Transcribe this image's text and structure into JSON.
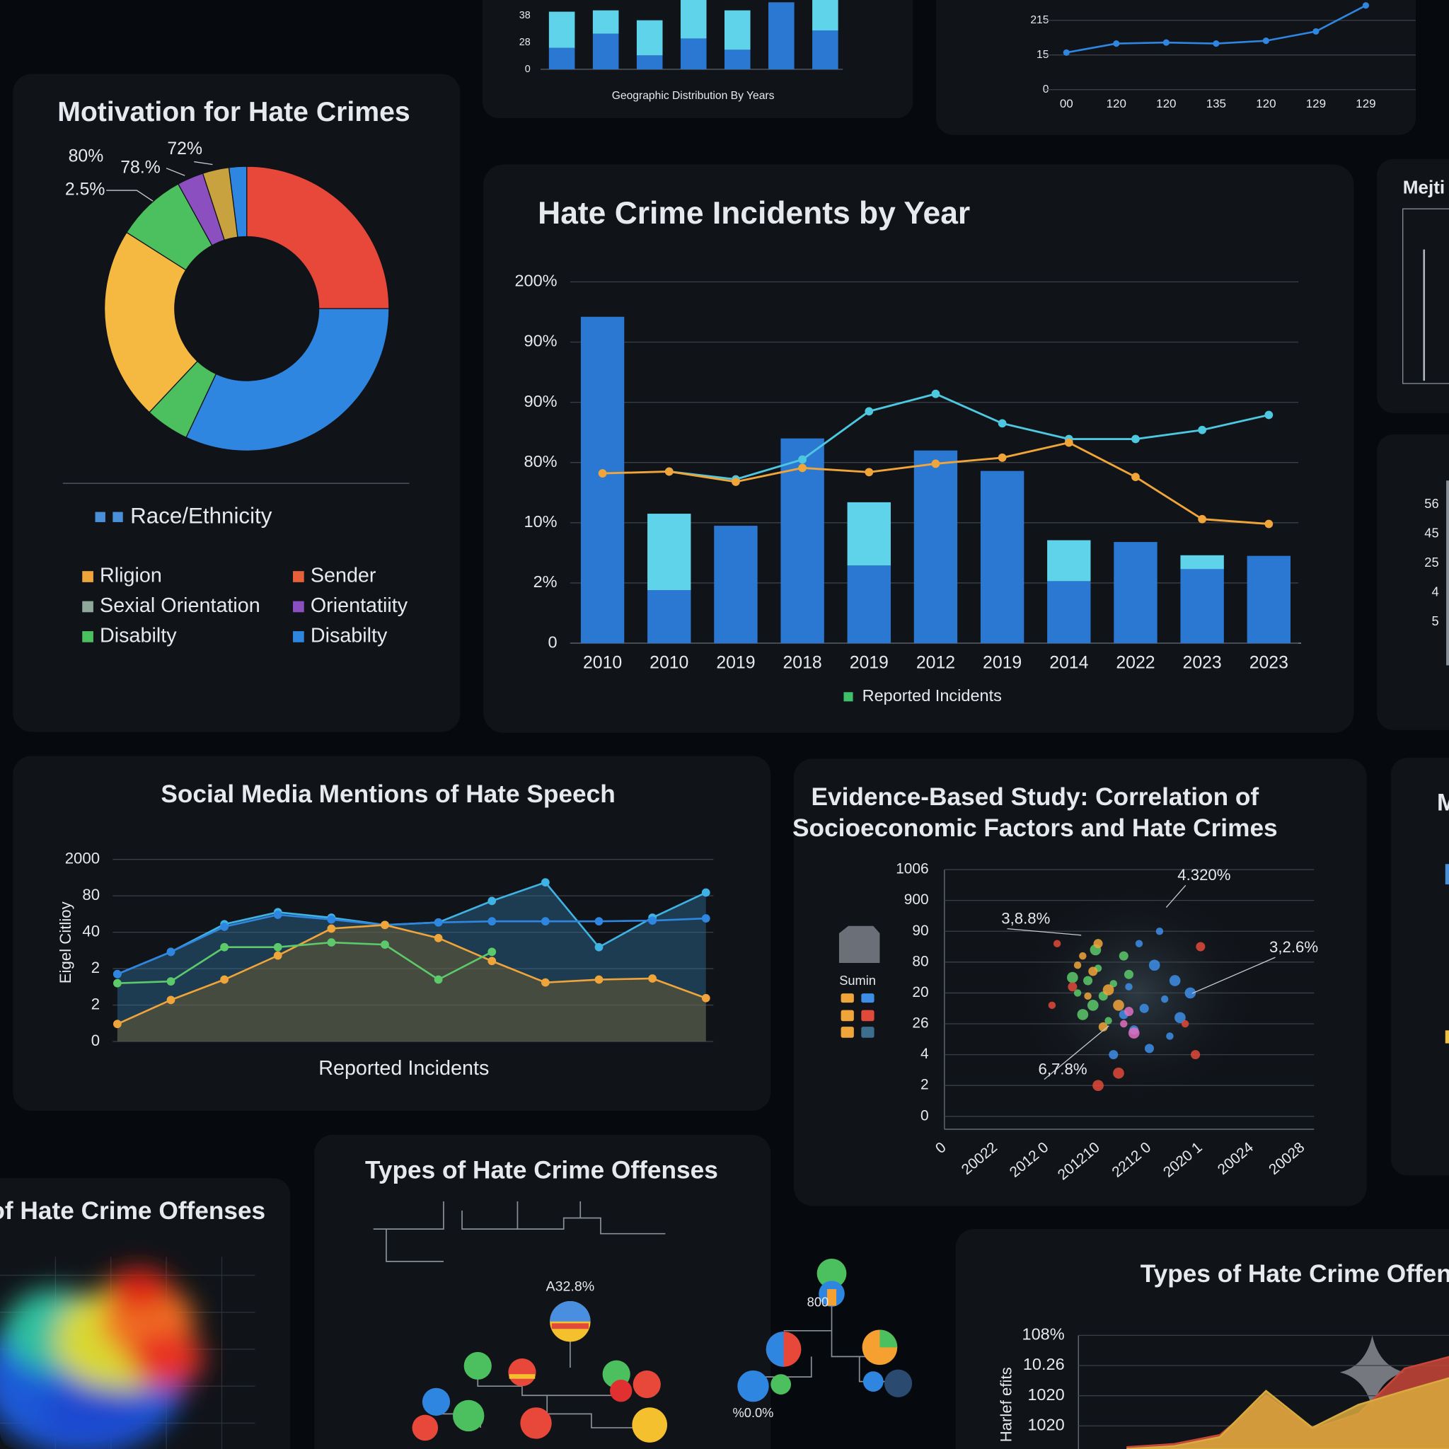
{
  "chart_data": [
    {
      "type": "bar",
      "xlabel": "Geographic Distribution By Years",
      "categories": [
        null,
        null,
        null,
        null,
        null,
        null,
        null
      ],
      "series": [
        {
          "color": "#2a78d2",
          "values": [
            0.8,
            1.33,
            0.52,
            1.15,
            0.73,
            2.5,
            1.45
          ]
        },
        {
          "color": "#5fd3ea",
          "values": [
            1.35,
            0.87,
            1.31,
            1.45,
            1.47,
            0,
            1.15
          ]
        }
      ],
      "ylim": [
        0,
        2.6
      ],
      "yticks": [
        0,
        {
          "value": 1,
          "label": "28"
        },
        {
          "value": 2,
          "label": "38"
        }
      ],
      "grid": false
    },
    {
      "type": "line",
      "categories": [
        "00",
        "120",
        "120",
        "135",
        "120",
        "129",
        "129"
      ],
      "series": [
        {
          "color": "#2f86e0",
          "values": [
            1.07,
            1.33,
            1.36,
            1.33,
            1.41,
            1.68,
            2.43
          ]
        }
      ],
      "ylim": [
        0,
        2.6
      ],
      "yticks": [
        0,
        {
          "value": 1,
          "label": "15"
        },
        {
          "value": 2,
          "label": "215"
        }
      ],
      "grid": true,
      "markers": true
    },
    {
      "type": "pie",
      "title": "Motivation for Hate Crimes",
      "values": [
        25,
        32,
        5,
        22,
        8,
        3,
        3,
        2
      ],
      "colors": [
        "#e8483a",
        "#2f86e0",
        "#4cbf5e",
        "#f5b942",
        "#4cbf5e",
        "#8b4fc0",
        "#c9a240",
        "#2f86e0"
      ],
      "annotations": [
        "80%",
        "78.%",
        "72%",
        "2.5%"
      ],
      "legend": [
        {
          "name": "Race/Ethnicity",
          "color": "#4a90d9"
        },
        {
          "name": "Rligion",
          "color": "#f0a53a"
        },
        {
          "name": "Sender",
          "color": "#e8603a"
        },
        {
          "name": "Sexial Orientation",
          "color": "#8fa89a"
        },
        {
          "name": "Orientatiity",
          "color": "#8b4fc0"
        },
        {
          "name": "Disabilty",
          "color": "#4cbf5e"
        },
        {
          "name": "Disabilty",
          "color": "#2f86e0"
        }
      ]
    },
    {
      "type": "bar",
      "title": "Hate Crime Incidents by Year",
      "categories": [
        "2010",
        "2010",
        "2019",
        "2018",
        "2019",
        "2012",
        "2019",
        "2014",
        "2022",
        "2023",
        "2023"
      ],
      "series": [
        {
          "name": "Reported Incidents",
          "color": "#2a78d2",
          "values": [
            5.42,
            0.88,
            1.95,
            3.4,
            1.29,
            3.2,
            2.86,
            1.03,
            1.68,
            1.23,
            1.45
          ]
        },
        {
          "color": "#5fd3ea",
          "values": [
            0,
            1.27,
            0,
            0,
            1.05,
            0,
            0,
            0.68,
            0,
            0.23,
            0
          ]
        },
        {
          "type": "line",
          "color": "#4ec8e0",
          "values": [
            null,
            2.85,
            2.72,
            3.05,
            3.85,
            4.14,
            3.65,
            3.39,
            3.39,
            3.54,
            3.79
          ]
        },
        {
          "type": "line",
          "color": "#f0a53a",
          "values": [
            2.82,
            2.85,
            2.68,
            2.91,
            2.84,
            2.98,
            3.08,
            3.33,
            2.76,
            2.06,
            1.98
          ]
        }
      ],
      "legend_color": "#3fbf6a",
      "ylim": [
        0,
        6
      ],
      "yticks": [
        0,
        {
          "value": 1,
          "label": "2%"
        },
        {
          "value": 2,
          "label": "10%"
        },
        {
          "value": 3,
          "label": "80%"
        },
        {
          "value": 4,
          "label": "90%"
        },
        {
          "value": 5,
          "label": "90%"
        },
        {
          "value": 6,
          "label": "200%"
        }
      ],
      "grid": true,
      "markers": true
    },
    {
      "type": "line",
      "title": "Social Media Mentions of Hate Speech",
      "xlabel": "Reported Incidents",
      "ylabel": "Eigel Citlioy",
      "categories": [
        null,
        null,
        null,
        null,
        null,
        null,
        null,
        null,
        null,
        null,
        null,
        null
      ],
      "series": [
        {
          "color": "#3fb3e3",
          "fill": "#2f6f9a",
          "values": [
            1.85,
            2.46,
            3.22,
            3.55,
            3.4,
            3.2,
            3.27,
            3.86,
            4.37,
            2.59,
            3.4,
            4.09
          ]
        },
        {
          "color": "#2f86e0",
          "values": [
            1.85,
            2.46,
            3.15,
            3.48,
            3.35,
            3.2,
            3.27,
            3.3,
            3.3,
            3.3,
            3.32,
            3.38
          ]
        },
        {
          "color": "#f0a53a",
          "fill": "#7a5e2a",
          "values": [
            0.48,
            1.14,
            1.7,
            2.36,
            3.1,
            3.2,
            2.84,
            2.21,
            1.62,
            1.7,
            1.73,
            1.19
          ]
        },
        {
          "color": "#5cc96a",
          "values": [
            1.6,
            1.65,
            2.59,
            2.59,
            2.72,
            2.66,
            1.7,
            2.46,
            null,
            null,
            null,
            null
          ]
        }
      ],
      "ylim": [
        0,
        5
      ],
      "yticks": [
        0,
        {
          "value": 1,
          "label": "2"
        },
        {
          "value": 2,
          "label": "2"
        },
        {
          "value": 3,
          "label": "40"
        },
        {
          "value": 4,
          "label": "80"
        },
        {
          "value": 5,
          "label": "2000"
        }
      ],
      "grid": true,
      "markers": true
    },
    {
      "type": "scatter",
      "title": [
        "Evidence-Based Study: Correlation of",
        "Socioeconomic Factors and Hate Crimes"
      ],
      "legend_title": "Sumin",
      "annotations": [
        "4.320%",
        "3,8.8%",
        "3,2.6%",
        "6,7.8%"
      ],
      "series": [
        {
          "color": "#5cc96a",
          "x": [
            2.6,
            2.8,
            2.9,
            3.0,
            3.1,
            2.7,
            3.3,
            3.5,
            2.5,
            3.2,
            3.6,
            2.95
          ],
          "y": [
            4.0,
            4.4,
            3.6,
            4.8,
            3.9,
            3.3,
            4.3,
            5.2,
            4.5,
            3.1,
            4.6,
            5.4
          ]
        },
        {
          "color": "#f0a53a",
          "x": [
            2.7,
            2.9,
            3.2,
            2.6,
            3.0,
            3.4,
            2.8,
            3.1
          ],
          "y": [
            5.2,
            4.7,
            4.1,
            4.9,
            5.6,
            3.6,
            3.9,
            2.9
          ]
        },
        {
          "color": "#3d8ee6",
          "x": [
            3.6,
            3.9,
            4.1,
            4.3,
            3.7,
            4.5,
            3.8,
            4.0,
            4.6,
            4.2,
            3.5,
            4.8,
            4.4,
            3.3
          ],
          "y": [
            4.2,
            3.5,
            4.9,
            3.8,
            2.8,
            4.4,
            5.6,
            2.2,
            3.2,
            6.0,
            3.3,
            4.0,
            2.6,
            2.0
          ]
        },
        {
          "color": "#e04a3a",
          "x": [
            2.2,
            2.5,
            3.4,
            4.7,
            5.0,
            3.0,
            2.1,
            4.9
          ],
          "y": [
            5.6,
            4.2,
            1.4,
            3.0,
            5.5,
            1.0,
            3.6,
            2.0
          ]
        },
        {
          "color": "#e070c0",
          "x": [
            3.5,
            3.6,
            3.7
          ],
          "y": [
            3.0,
            3.4,
            2.7
          ]
        }
      ],
      "xlim": [
        0,
        7
      ],
      "xticks": [
        0,
        {
          "value": 1,
          "label": "20022"
        },
        {
          "value": 2,
          "label": "2012 0"
        },
        {
          "value": 3,
          "label": "201210"
        },
        {
          "value": 4,
          "label": "2212 0"
        },
        {
          "value": 5,
          "label": "2020 1"
        },
        {
          "value": 6,
          "label": "20024"
        },
        {
          "value": 7,
          "label": "20028"
        }
      ],
      "ylim": [
        0,
        8
      ],
      "yticks": [
        0,
        {
          "value": 1,
          "label": "2"
        },
        {
          "value": 2,
          "label": "4"
        },
        {
          "value": 3,
          "label": "26"
        },
        {
          "value": 4,
          "label": "20"
        },
        {
          "value": 5,
          "label": "80"
        },
        {
          "value": 6,
          "label": "90"
        },
        {
          "value": 7,
          "label": "900"
        },
        {
          "value": 8,
          "label": "1006"
        }
      ],
      "grid": true
    },
    {
      "type": "area",
      "title": "Types of Hate Crime Offenses",
      "ylabel": "Harlef efits",
      "categories": [
        null,
        null,
        null,
        null,
        null,
        null,
        null,
        null
      ],
      "series": [
        {
          "color": "#c8463a",
          "values": [
            -0.7,
            -0.6,
            -0.3,
            1.0,
            -0.1,
            0.4,
            1.9,
            2.3
          ]
        },
        {
          "color": "#d9aa3e",
          "values": [
            -0.76,
            -0.67,
            -0.37,
            1.16,
            -0.06,
            0.7,
            1.16,
            1.6
          ]
        }
      ],
      "ylim": [
        -1,
        3
      ],
      "yticks": [
        {
          "value": 0,
          "label": "1020"
        },
        {
          "value": 1,
          "label": "1020"
        },
        {
          "value": 2,
          "label": "10.26"
        },
        {
          "value": 3,
          "label": "108%"
        }
      ],
      "grid": true
    },
    {
      "type": "heatmap",
      "title": "of Hate Crime Offenses"
    },
    {
      "type": "tree",
      "title": "Types of Hate Crime Offenses",
      "annotations": [
        "A32.8%"
      ]
    },
    {
      "type": "tree",
      "annotations": [
        "800",
        "%0.0%"
      ]
    },
    {
      "type": "panel",
      "title": "Mejti"
    },
    {
      "type": "panel",
      "ylim": [
        0,
        4
      ],
      "yticks": [
        {
          "value": 0,
          "label": "5"
        },
        {
          "value": 1,
          "label": "4"
        },
        {
          "value": 2,
          "label": "25"
        },
        {
          "value": 3,
          "label": "45"
        },
        {
          "value": 4,
          "label": "56"
        }
      ]
    },
    {
      "type": "panel",
      "title": "M"
    }
  ]
}
